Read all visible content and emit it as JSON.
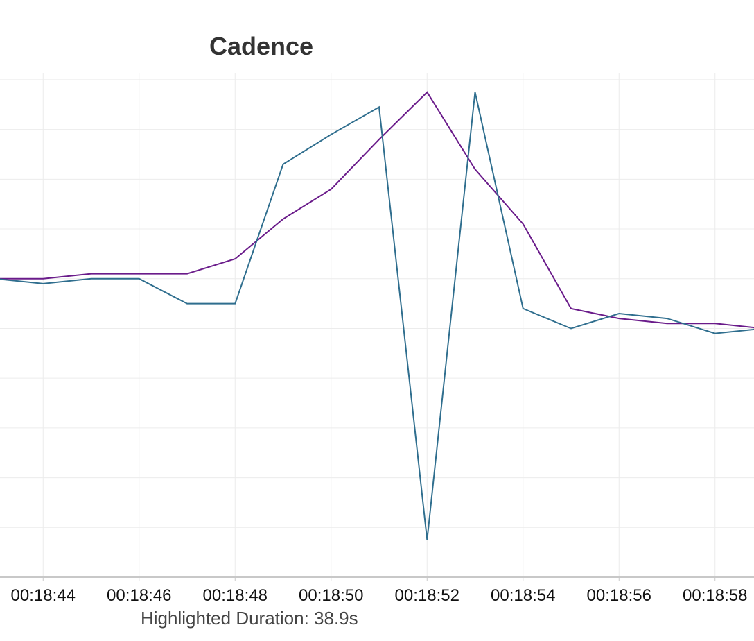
{
  "chart_data": {
    "type": "line",
    "title": "Cadence",
    "xlabel": "",
    "ylabel": "",
    "x": [
      "00:18:43",
      "00:18:44",
      "00:18:45",
      "00:18:46",
      "00:18:47",
      "00:18:48",
      "00:18:49",
      "00:18:50",
      "00:18:51",
      "00:18:52",
      "00:18:53",
      "00:18:54",
      "00:18:55",
      "00:18:56",
      "00:18:57",
      "00:18:58",
      "00:18:59"
    ],
    "x_tick_labels": [
      "00:18:44",
      "00:18:46",
      "00:18:48",
      "00:18:50",
      "00:18:52",
      "00:18:54",
      "00:18:56",
      "00:18:58"
    ],
    "ylim": [
      0,
      10.25
    ],
    "grid": true,
    "series": [
      {
        "values": [
          6.0,
          6.0,
          6.1,
          6.1,
          6.1,
          6.4,
          7.2,
          7.8,
          8.8,
          9.75,
          8.2,
          7.1,
          5.4,
          5.2,
          5.1,
          5.1,
          5.0
        ],
        "color": "#6a1b8a"
      },
      {
        "values": [
          6.0,
          5.9,
          6.0,
          6.0,
          5.5,
          5.5,
          8.3,
          8.9,
          9.45,
          0.75,
          9.75,
          5.4,
          5.0,
          5.3,
          5.2,
          4.9,
          5.0
        ],
        "color": "#2f6e8e"
      }
    ]
  },
  "footer": {
    "highlighted_duration": "Highlighted Duration: 38.9s"
  }
}
